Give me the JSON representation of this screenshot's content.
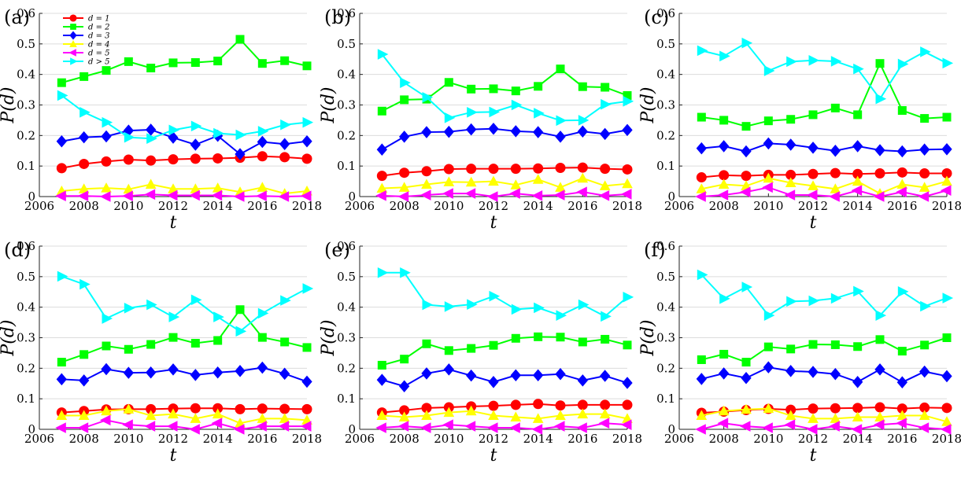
{
  "figure": {
    "series_styles": [
      {
        "key": "d1",
        "legend": "d = 1",
        "color": "#ff0000",
        "marker": "circle"
      },
      {
        "key": "d2",
        "legend": "d = 2",
        "color": "#00ff00",
        "marker": "square"
      },
      {
        "key": "d3",
        "legend": "d = 3",
        "color": "#0000ff",
        "marker": "diamond"
      },
      {
        "key": "d4",
        "legend": "d = 4",
        "color": "#ffff00",
        "marker": "triangle-up"
      },
      {
        "key": "d5",
        "legend": "d = 5",
        "color": "#ff00ff",
        "marker": "triangle-left"
      },
      {
        "key": "d6",
        "legend": "d > 5",
        "color": "#00ffff",
        "marker": "triangle-right"
      }
    ]
  },
  "chart_data": [
    {
      "panel": "(a)",
      "type": "line",
      "xlabel": "t",
      "ylabel": "P(d)",
      "xlim": [
        2006,
        2018
      ],
      "ylim": [
        0,
        0.6
      ],
      "xticks": [
        "2006",
        "2008",
        "2010",
        "2012",
        "2014",
        "2016",
        "2018"
      ],
      "yticks": [
        "0",
        "0.1",
        "0.2",
        "0.3",
        "0.4",
        "0.5",
        "0.6"
      ],
      "grid": "horizontal",
      "legend": "top-left",
      "x": [
        2007,
        2008,
        2009,
        2010,
        2011,
        2012,
        2013,
        2014,
        2015,
        2016,
        2017,
        2018
      ],
      "series": [
        {
          "name": "d = 1",
          "values": [
            0.093,
            0.107,
            0.115,
            0.121,
            0.118,
            0.122,
            0.124,
            0.125,
            0.127,
            0.132,
            0.129,
            0.124
          ]
        },
        {
          "name": "d = 2",
          "values": [
            0.373,
            0.393,
            0.413,
            0.442,
            0.421,
            0.438,
            0.439,
            0.444,
            0.515,
            0.436,
            0.445,
            0.428
          ]
        },
        {
          "name": "d = 3",
          "values": [
            0.181,
            0.194,
            0.197,
            0.216,
            0.219,
            0.193,
            0.17,
            0.199,
            0.139,
            0.179,
            0.172,
            0.181
          ]
        },
        {
          "name": "d = 4",
          "values": [
            0.018,
            0.025,
            0.028,
            0.024,
            0.04,
            0.025,
            0.025,
            0.028,
            0.015,
            0.03,
            0.01,
            0.018
          ]
        },
        {
          "name": "d = 5",
          "values": [
            0.002,
            0.002,
            0.0,
            0.002,
            0.007,
            0.004,
            0.004,
            0.004,
            0.0,
            0.002,
            0.0,
            0.002
          ]
        },
        {
          "name": "d > 5",
          "values": [
            0.331,
            0.276,
            0.243,
            0.194,
            0.19,
            0.218,
            0.231,
            0.207,
            0.202,
            0.214,
            0.235,
            0.243
          ]
        }
      ]
    },
    {
      "panel": "(b)",
      "type": "line",
      "xlabel": "t",
      "ylabel": "P(d)",
      "xlim": [
        2006,
        2018
      ],
      "ylim": [
        0,
        0.6
      ],
      "xticks": [
        "2006",
        "2008",
        "2010",
        "2012",
        "2014",
        "2016",
        "2018"
      ],
      "yticks": [
        "0",
        "0.1",
        "0.2",
        "0.3",
        "0.4",
        "0.5",
        "0.6"
      ],
      "grid": "horizontal",
      "x": [
        2007,
        2008,
        2009,
        2010,
        2011,
        2012,
        2013,
        2014,
        2015,
        2016,
        2017,
        2018
      ],
      "series": [
        {
          "name": "d = 1",
          "values": [
            0.068,
            0.078,
            0.083,
            0.09,
            0.091,
            0.091,
            0.091,
            0.092,
            0.094,
            0.095,
            0.091,
            0.089
          ]
        },
        {
          "name": "d = 2",
          "values": [
            0.28,
            0.317,
            0.319,
            0.374,
            0.352,
            0.353,
            0.346,
            0.361,
            0.418,
            0.36,
            0.358,
            0.331
          ]
        },
        {
          "name": "d = 3",
          "values": [
            0.154,
            0.196,
            0.211,
            0.212,
            0.22,
            0.222,
            0.214,
            0.211,
            0.196,
            0.213,
            0.205,
            0.218
          ]
        },
        {
          "name": "d = 4",
          "values": [
            0.027,
            0.03,
            0.04,
            0.048,
            0.047,
            0.05,
            0.038,
            0.056,
            0.03,
            0.06,
            0.035,
            0.042
          ]
        },
        {
          "name": "d = 5",
          "values": [
            0.003,
            0.0,
            0.005,
            0.01,
            0.01,
            0.0,
            0.01,
            0.003,
            0.005,
            0.015,
            0.003,
            0.008
          ]
        },
        {
          "name": "d > 5",
          "values": [
            0.466,
            0.373,
            0.325,
            0.258,
            0.276,
            0.277,
            0.3,
            0.273,
            0.249,
            0.25,
            0.302,
            0.312
          ]
        }
      ]
    },
    {
      "panel": "(c)",
      "type": "line",
      "xlabel": "t",
      "ylabel": "P(d)",
      "xlim": [
        2006,
        2018
      ],
      "ylim": [
        0,
        0.6
      ],
      "xticks": [
        "2006",
        "2008",
        "2010",
        "2012",
        "2014",
        "2016",
        "2018"
      ],
      "yticks": [
        "0",
        "0.1",
        "0.2",
        "0.3",
        "0.4",
        "0.5",
        "0.6"
      ],
      "grid": "horizontal",
      "x": [
        2007,
        2008,
        2009,
        2010,
        2011,
        2012,
        2013,
        2014,
        2015,
        2016,
        2017,
        2018
      ],
      "series": [
        {
          "name": "d = 1",
          "values": [
            0.063,
            0.07,
            0.068,
            0.071,
            0.071,
            0.074,
            0.077,
            0.074,
            0.076,
            0.079,
            0.076,
            0.076
          ]
        },
        {
          "name": "d = 2",
          "values": [
            0.26,
            0.25,
            0.23,
            0.248,
            0.253,
            0.268,
            0.29,
            0.268,
            0.436,
            0.282,
            0.256,
            0.26
          ]
        },
        {
          "name": "d = 3",
          "values": [
            0.158,
            0.165,
            0.148,
            0.174,
            0.17,
            0.16,
            0.15,
            0.165,
            0.152,
            0.148,
            0.154,
            0.155
          ]
        },
        {
          "name": "d = 4",
          "values": [
            0.025,
            0.04,
            0.035,
            0.06,
            0.045,
            0.035,
            0.025,
            0.05,
            0.01,
            0.04,
            0.03,
            0.05
          ]
        },
        {
          "name": "d = 5",
          "values": [
            0.0,
            0.005,
            0.015,
            0.03,
            0.005,
            0.005,
            0.0,
            0.02,
            0.0,
            0.015,
            0.0,
            0.02
          ]
        },
        {
          "name": "d > 5",
          "values": [
            0.478,
            0.46,
            0.503,
            0.412,
            0.442,
            0.446,
            0.443,
            0.418,
            0.32,
            0.434,
            0.474,
            0.437
          ]
        }
      ]
    },
    {
      "panel": "(d)",
      "type": "line",
      "xlabel": "t",
      "ylabel": "P(d)",
      "xlim": [
        2006,
        2018
      ],
      "ylim": [
        0,
        0.6
      ],
      "xticks": [
        "2006",
        "2008",
        "2010",
        "2012",
        "2014",
        "2016",
        "2018"
      ],
      "yticks": [
        "0",
        "0.1",
        "0.2",
        "0.3",
        "0.4",
        "0.5",
        "0.6"
      ],
      "grid": "horizontal",
      "x": [
        2007,
        2008,
        2009,
        2010,
        2011,
        2012,
        2013,
        2014,
        2015,
        2016,
        2017,
        2018
      ],
      "series": [
        {
          "name": "d = 1",
          "values": [
            0.055,
            0.06,
            0.065,
            0.066,
            0.066,
            0.068,
            0.069,
            0.069,
            0.066,
            0.068,
            0.067,
            0.066
          ]
        },
        {
          "name": "d = 2",
          "values": [
            0.22,
            0.245,
            0.273,
            0.262,
            0.278,
            0.301,
            0.282,
            0.291,
            0.392,
            0.301,
            0.286,
            0.268
          ]
        },
        {
          "name": "d = 3",
          "values": [
            0.164,
            0.16,
            0.197,
            0.185,
            0.186,
            0.196,
            0.178,
            0.186,
            0.191,
            0.202,
            0.182,
            0.156
          ]
        },
        {
          "name": "d = 4",
          "values": [
            0.045,
            0.045,
            0.06,
            0.066,
            0.045,
            0.05,
            0.035,
            0.05,
            0.02,
            0.035,
            0.035,
            0.03
          ]
        },
        {
          "name": "d = 5",
          "values": [
            0.005,
            0.005,
            0.03,
            0.015,
            0.01,
            0.01,
            0.0,
            0.02,
            0.0,
            0.01,
            0.01,
            0.01
          ]
        },
        {
          "name": "d > 5",
          "values": [
            0.501,
            0.475,
            0.363,
            0.397,
            0.408,
            0.368,
            0.424,
            0.368,
            0.321,
            0.38,
            0.422,
            0.461
          ]
        }
      ]
    },
    {
      "panel": "(e)",
      "type": "line",
      "xlabel": "t",
      "ylabel": "P(d)",
      "xlim": [
        2006,
        2018
      ],
      "ylim": [
        0,
        0.6
      ],
      "xticks": [
        "2006",
        "2008",
        "2010",
        "2012",
        "2014",
        "2016",
        "2018"
      ],
      "yticks": [
        "0",
        "0.1",
        "0.2",
        "0.3",
        "0.4",
        "0.5",
        "0.6"
      ],
      "grid": "horizontal",
      "x": [
        2007,
        2008,
        2009,
        2010,
        2011,
        2012,
        2013,
        2014,
        2015,
        2016,
        2017,
        2018
      ],
      "series": [
        {
          "name": "d = 1",
          "values": [
            0.055,
            0.062,
            0.07,
            0.072,
            0.075,
            0.077,
            0.08,
            0.083,
            0.078,
            0.08,
            0.08,
            0.08
          ]
        },
        {
          "name": "d = 2",
          "values": [
            0.21,
            0.23,
            0.28,
            0.258,
            0.265,
            0.275,
            0.298,
            0.303,
            0.302,
            0.286,
            0.295,
            0.276
          ]
        },
        {
          "name": "d = 3",
          "values": [
            0.162,
            0.141,
            0.183,
            0.196,
            0.176,
            0.155,
            0.177,
            0.177,
            0.181,
            0.16,
            0.175,
            0.152
          ]
        },
        {
          "name": "d = 4",
          "values": [
            0.045,
            0.04,
            0.045,
            0.055,
            0.06,
            0.045,
            0.04,
            0.035,
            0.045,
            0.05,
            0.05,
            0.035
          ]
        },
        {
          "name": "d = 5",
          "values": [
            0.005,
            0.01,
            0.005,
            0.015,
            0.01,
            0.005,
            0.005,
            0.0,
            0.01,
            0.005,
            0.02,
            0.015
          ]
        },
        {
          "name": "d > 5",
          "values": [
            0.513,
            0.513,
            0.408,
            0.402,
            0.409,
            0.436,
            0.393,
            0.398,
            0.373,
            0.408,
            0.37,
            0.433
          ]
        }
      ]
    },
    {
      "panel": "(f)",
      "type": "line",
      "xlabel": "t",
      "ylabel": "P(d)",
      "xlim": [
        2006,
        2018
      ],
      "ylim": [
        0,
        0.6
      ],
      "xticks": [
        "2006",
        "2008",
        "2010",
        "2012",
        "2014",
        "2016",
        "2018"
      ],
      "yticks": [
        "0",
        "0.1",
        "0.2",
        "0.3",
        "0.4",
        "0.5",
        "0.6"
      ],
      "grid": "horizontal",
      "x": [
        2007,
        2008,
        2009,
        2010,
        2011,
        2012,
        2013,
        2014,
        2015,
        2016,
        2017,
        2018
      ],
      "series": [
        {
          "name": "d = 1",
          "values": [
            0.054,
            0.058,
            0.063,
            0.067,
            0.064,
            0.068,
            0.069,
            0.07,
            0.072,
            0.068,
            0.071,
            0.07
          ]
        },
        {
          "name": "d = 2",
          "values": [
            0.228,
            0.246,
            0.22,
            0.27,
            0.263,
            0.278,
            0.277,
            0.271,
            0.294,
            0.256,
            0.276,
            0.3
          ]
        },
        {
          "name": "d = 3",
          "values": [
            0.165,
            0.183,
            0.168,
            0.203,
            0.191,
            0.188,
            0.181,
            0.155,
            0.196,
            0.154,
            0.189,
            0.174
          ]
        },
        {
          "name": "d = 4",
          "values": [
            0.045,
            0.06,
            0.065,
            0.068,
            0.045,
            0.035,
            0.035,
            0.04,
            0.04,
            0.045,
            0.045,
            0.025
          ]
        },
        {
          "name": "d = 5",
          "values": [
            0.0,
            0.02,
            0.01,
            0.005,
            0.015,
            0.0,
            0.01,
            0.0,
            0.015,
            0.02,
            0.005,
            0.0
          ]
        },
        {
          "name": "d > 5",
          "values": [
            0.506,
            0.428,
            0.466,
            0.373,
            0.419,
            0.421,
            0.429,
            0.452,
            0.373,
            0.451,
            0.403,
            0.43
          ]
        }
      ]
    }
  ]
}
